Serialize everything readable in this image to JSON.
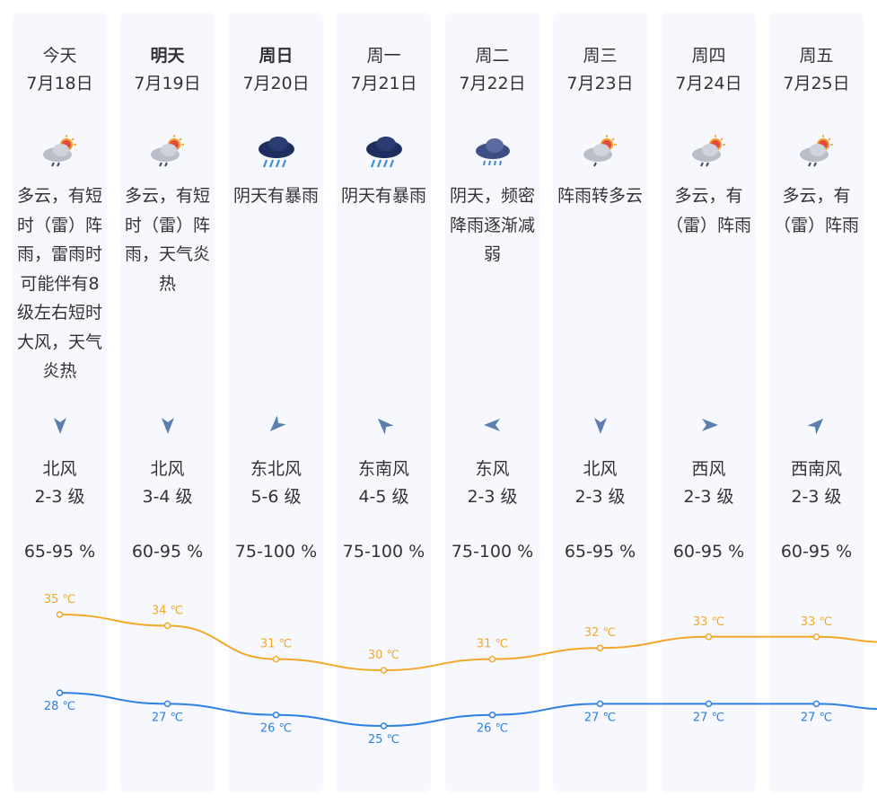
{
  "colors": {
    "card_bg": "#f6f8fd",
    "high_line": "#f2a92b",
    "low_line": "#2f80e3",
    "wind_arrow": "#5a7fad"
  },
  "days": [
    {
      "day": "今天",
      "date": "7月18日",
      "bold": false,
      "icon": "partly-cloudy-thunder-shower-icon",
      "desc": "多云，有短时（雷）阵雨，雷雨时可能伴有8级左右短时大风，天气炎热",
      "wind_dir": "north-wind-icon",
      "wind_rot": 180,
      "wind": "北风",
      "wind_level": "2-3 级",
      "humidity": "65-95 %",
      "high": 35,
      "low": 28,
      "high_label": "35 ℃",
      "low_label": "28 ℃"
    },
    {
      "day": "明天",
      "date": "7月19日",
      "bold": true,
      "icon": "partly-cloudy-thunder-shower-icon",
      "desc": "多云，有短时（雷）阵雨，天气炎热",
      "wind_dir": "north-wind-icon",
      "wind_rot": 180,
      "wind": "北风",
      "wind_level": "3-4 级",
      "humidity": "60-95 %",
      "high": 34,
      "low": 27,
      "high_label": "34 ℃",
      "low_label": "27 ℃"
    },
    {
      "day": "周日",
      "date": "7月20日",
      "bold": true,
      "icon": "heavy-rain-icon",
      "desc": "阴天有暴雨",
      "wind_dir": "northeast-wind-icon",
      "wind_rot": 225,
      "wind": "东北风",
      "wind_level": "5-6 级",
      "humidity": "75-100 %",
      "high": 31,
      "low": 26,
      "high_label": "31 ℃",
      "low_label": "26 ℃"
    },
    {
      "day": "周一",
      "date": "7月21日",
      "bold": false,
      "icon": "heavy-rain-icon",
      "desc": "阴天有暴雨",
      "wind_dir": "southeast-wind-icon",
      "wind_rot": 315,
      "wind": "东南风",
      "wind_level": "4-5 级",
      "humidity": "75-100 %",
      "high": 30,
      "low": 25,
      "high_label": "30 ℃",
      "low_label": "25 ℃"
    },
    {
      "day": "周二",
      "date": "7月22日",
      "bold": false,
      "icon": "overcast-rain-icon",
      "desc": "阴天，频密降雨逐渐减弱",
      "wind_dir": "east-wind-icon",
      "wind_rot": 270,
      "wind": "东风",
      "wind_level": "2-3 级",
      "humidity": "75-100 %",
      "high": 31,
      "low": 26,
      "high_label": "31 ℃",
      "low_label": "26 ℃"
    },
    {
      "day": "周三",
      "date": "7月23日",
      "bold": false,
      "icon": "partly-cloudy-shower-icon",
      "desc": "阵雨转多云",
      "wind_dir": "north-wind-icon",
      "wind_rot": 180,
      "wind": "北风",
      "wind_level": "2-3 级",
      "humidity": "65-95 %",
      "high": 32,
      "low": 27,
      "high_label": "32 ℃",
      "low_label": "27 ℃"
    },
    {
      "day": "周四",
      "date": "7月24日",
      "bold": false,
      "icon": "partly-cloudy-thunder-shower-icon",
      "desc": "多云，有（雷）阵雨",
      "wind_dir": "west-wind-icon",
      "wind_rot": 90,
      "wind": "西风",
      "wind_level": "2-3 级",
      "humidity": "60-95 %",
      "high": 33,
      "low": 27,
      "high_label": "33 ℃",
      "low_label": "27 ℃"
    },
    {
      "day": "周五",
      "date": "7月25日",
      "bold": false,
      "icon": "partly-cloudy-thunder-shower-icon",
      "desc": "多云，有（雷）阵雨",
      "wind_dir": "southwest-wind-icon",
      "wind_rot": 45,
      "wind": "西南风",
      "wind_level": "2-3 级",
      "humidity": "60-95 %",
      "high": 33,
      "low": 27,
      "high_label": "33 ℃",
      "low_label": "27 ℃"
    }
  ]
}
